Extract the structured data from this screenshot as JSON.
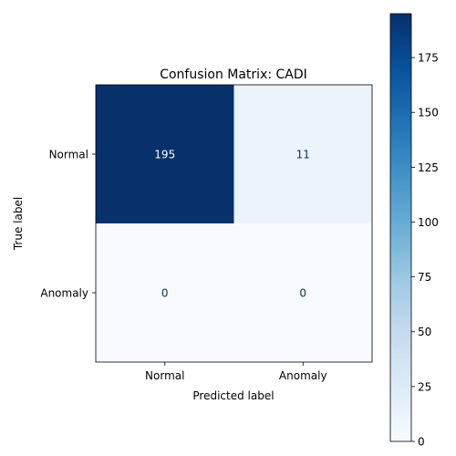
{
  "chart_data": {
    "type": "heatmap",
    "title": "Confusion Matrix: CADI",
    "xlabel": "Predicted label",
    "ylabel": "True label",
    "x_categories": [
      "Normal",
      "Anomaly"
    ],
    "y_categories": [
      "Normal",
      "Anomaly"
    ],
    "values": [
      [
        195,
        11
      ],
      [
        0,
        0
      ]
    ],
    "colormap": "Blues",
    "colorbar": {
      "min": 0,
      "max": 195,
      "ticks": [
        0,
        25,
        50,
        75,
        100,
        125,
        150,
        175
      ]
    },
    "colors": {
      "low": "#f7fbff",
      "high": "#08306b",
      "text_dark": "#08306b",
      "text_light": "#ffffff"
    }
  }
}
